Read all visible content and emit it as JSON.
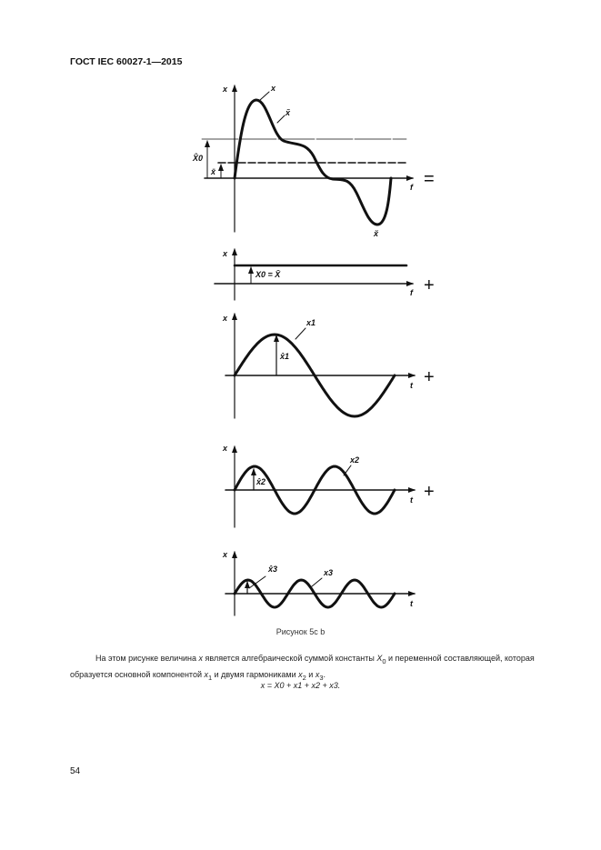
{
  "header": "ГОСТ IEC 60027-1—2015",
  "figure": {
    "axis_y": "x",
    "axis_t_f": "f",
    "axis_t": "t",
    "plot1": {
      "curve_label": "x",
      "ac_label": "x̃",
      "x0_label": "X̂0",
      "mean_label": "x̄",
      "min_label": "x̆",
      "operator": "="
    },
    "plot2": {
      "label": "X0 = X̄",
      "operator": "+"
    },
    "plot3": {
      "curve_label": "x1",
      "amp_label": "x̂1",
      "operator": "+"
    },
    "plot4": {
      "curve_label": "x2",
      "amp_label": "x̂2",
      "operator": "+"
    },
    "plot5": {
      "curve_label": "x3",
      "amp_label": "x̂3"
    }
  },
  "caption": "Рисунок 5с b",
  "paragraph": {
    "p1": "На этом рисунке величина ",
    "x": "x",
    "p2": " является алгебраической суммой константы ",
    "X0": "X",
    "sub0": "0",
    "p3": " и переменной составляющей, которая образуется основной компонентой ",
    "x1": "x",
    "sub1": "1",
    "p4": " и двумя гармониками ",
    "x2": "x",
    "sub2": "2",
    "p5": " и ",
    "x3": "x",
    "sub3": "3",
    "p6": "."
  },
  "formula": "x = X0 + x1 + x2 + x3.",
  "page_number": "54"
}
